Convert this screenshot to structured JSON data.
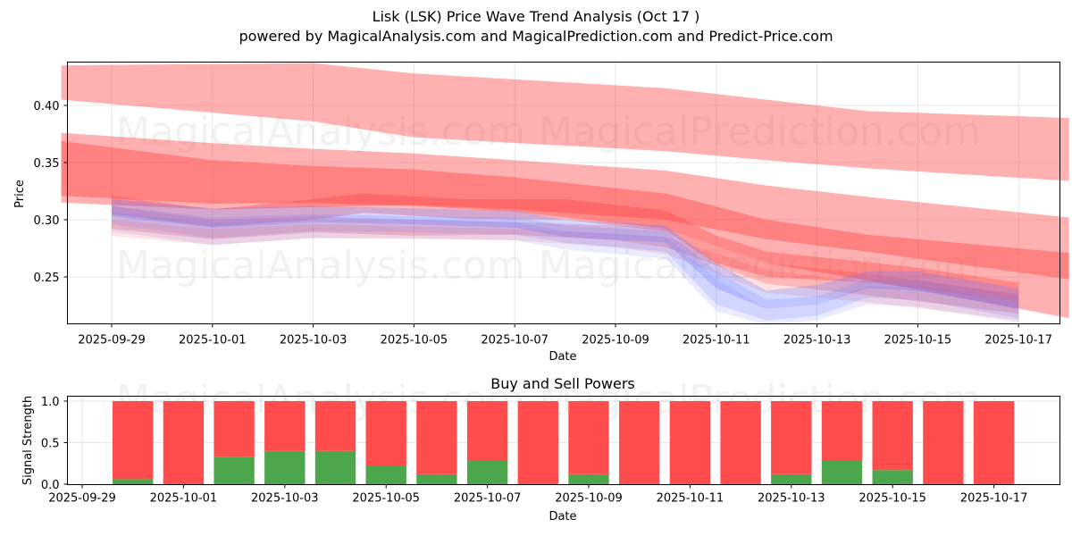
{
  "header": {
    "title": "Lisk (LSK) Price Wave Trend Analysis (Oct 17 )",
    "subtitle": "powered by MagicalAnalysis.com and MagicalPrediction.com and Predict-Price.com"
  },
  "watermarks": [
    "MagicalAnalysis.com",
    "MagicalPrediction.com"
  ],
  "colors": {
    "sell": "#ff4c4c",
    "buy": "#4ca64c",
    "band_red": "#ff3b3b",
    "band_blue": "#6f7bff",
    "grid": "#e0e0e0"
  },
  "chart_data": [
    {
      "type": "area",
      "title": "",
      "xlabel": "Date",
      "ylabel": "Price",
      "ylim": [
        0.209,
        0.439
      ],
      "xlim": [
        "2025-09-28",
        "2025-10-18"
      ],
      "grid": true,
      "x_ticks": [
        "2025-09-29",
        "2025-10-01",
        "2025-10-03",
        "2025-10-05",
        "2025-10-07",
        "2025-10-09",
        "2025-10-11",
        "2025-10-13",
        "2025-10-15",
        "2025-10-17"
      ],
      "y_ticks": [
        0.25,
        0.3,
        0.35,
        0.4
      ],
      "y_tick_labels": [
        "0.25",
        "0.30",
        "0.35",
        "0.40"
      ],
      "series": [
        {
          "name": "upper-band",
          "color": "red",
          "opacity": 0.4,
          "x": [
            "2025-09-28",
            "2025-10-03",
            "2025-10-05",
            "2025-10-10",
            "2025-10-12",
            "2025-10-14",
            "2025-10-18"
          ],
          "upper": [
            0.435,
            0.437,
            0.428,
            0.415,
            0.405,
            0.395,
            0.389
          ],
          "lower": [
            0.405,
            0.386,
            0.372,
            0.36,
            0.352,
            0.345,
            0.334
          ]
        },
        {
          "name": "middle-band-light",
          "color": "red",
          "opacity": 0.4,
          "x": [
            "2025-09-28",
            "2025-10-01",
            "2025-10-03",
            "2025-10-05",
            "2025-10-07",
            "2025-10-10",
            "2025-10-12",
            "2025-10-14",
            "2025-10-18"
          ],
          "upper": [
            0.376,
            0.367,
            0.362,
            0.358,
            0.352,
            0.343,
            0.33,
            0.32,
            0.302
          ],
          "lower": [
            0.315,
            0.309,
            0.311,
            0.313,
            0.309,
            0.3,
            0.283,
            0.272,
            0.248
          ]
        },
        {
          "name": "middle-band-dark",
          "color": "red",
          "opacity": 0.4,
          "x": [
            "2025-09-28",
            "2025-10-01",
            "2025-10-03",
            "2025-10-05",
            "2025-10-07",
            "2025-10-10",
            "2025-10-12",
            "2025-10-14",
            "2025-10-18"
          ],
          "upper": [
            0.369,
            0.352,
            0.347,
            0.344,
            0.337,
            0.323,
            0.3,
            0.287,
            0.271
          ],
          "lower": [
            0.321,
            0.314,
            0.315,
            0.312,
            0.307,
            0.292,
            0.262,
            0.247,
            0.214
          ]
        },
        {
          "name": "price-wave-red-1",
          "color": "red",
          "opacity": 0.35,
          "x": [
            "2025-09-29",
            "2025-10-01",
            "2025-10-03",
            "2025-10-04",
            "2025-10-06",
            "2025-10-08",
            "2025-10-10",
            "2025-10-11",
            "2025-10-12",
            "2025-10-14",
            "2025-10-15",
            "2025-10-17"
          ],
          "upper": [
            0.321,
            0.309,
            0.318,
            0.323,
            0.318,
            0.318,
            0.308,
            0.286,
            0.272,
            0.263,
            0.258,
            0.245
          ],
          "lower": [
            0.305,
            0.294,
            0.3,
            0.306,
            0.301,
            0.3,
            0.29,
            0.262,
            0.25,
            0.245,
            0.24,
            0.228
          ]
        },
        {
          "name": "price-wave-red-2",
          "color": "red",
          "opacity": 0.25,
          "x": [
            "2025-09-29",
            "2025-10-01",
            "2025-10-03",
            "2025-10-05",
            "2025-10-07",
            "2025-10-09",
            "2025-10-10",
            "2025-10-12",
            "2025-10-14",
            "2025-10-17"
          ],
          "upper": [
            0.312,
            0.3,
            0.303,
            0.3,
            0.298,
            0.295,
            0.292,
            0.262,
            0.253,
            0.235
          ],
          "lower": [
            0.292,
            0.283,
            0.289,
            0.286,
            0.287,
            0.282,
            0.276,
            0.244,
            0.234,
            0.218
          ]
        },
        {
          "name": "price-wave-red-3",
          "color": "red",
          "opacity": 0.15,
          "x": [
            "2025-09-29",
            "2025-10-01",
            "2025-10-03",
            "2025-10-05",
            "2025-10-07",
            "2025-10-09",
            "2025-10-10",
            "2025-10-12",
            "2025-10-14",
            "2025-10-17"
          ],
          "upper": [
            0.3,
            0.292,
            0.296,
            0.294,
            0.292,
            0.288,
            0.285,
            0.256,
            0.245,
            0.228
          ],
          "lower": [
            0.286,
            0.278,
            0.284,
            0.283,
            0.282,
            0.276,
            0.27,
            0.236,
            0.228,
            0.212
          ]
        },
        {
          "name": "price-wave-blue-1",
          "color": "blue",
          "opacity": 0.3,
          "x": [
            "2025-09-29",
            "2025-10-01",
            "2025-10-03",
            "2025-10-05",
            "2025-10-07",
            "2025-10-08",
            "2025-10-10",
            "2025-10-11",
            "2025-10-12",
            "2025-10-13",
            "2025-10-14",
            "2025-10-15",
            "2025-10-17"
          ],
          "upper": [
            0.318,
            0.31,
            0.312,
            0.31,
            0.308,
            0.3,
            0.295,
            0.262,
            0.238,
            0.243,
            0.255,
            0.255,
            0.24
          ],
          "lower": [
            0.303,
            0.293,
            0.298,
            0.296,
            0.293,
            0.285,
            0.28,
            0.24,
            0.222,
            0.226,
            0.24,
            0.238,
            0.222
          ]
        },
        {
          "name": "price-wave-blue-2",
          "color": "blue",
          "opacity": 0.2,
          "x": [
            "2025-09-29",
            "2025-10-01",
            "2025-10-03",
            "2025-10-05",
            "2025-10-07",
            "2025-10-08",
            "2025-10-10",
            "2025-10-11",
            "2025-10-12",
            "2025-10-13",
            "2025-10-14",
            "2025-10-15",
            "2025-10-17"
          ],
          "upper": [
            0.312,
            0.302,
            0.305,
            0.303,
            0.302,
            0.295,
            0.29,
            0.255,
            0.23,
            0.233,
            0.248,
            0.248,
            0.233
          ],
          "lower": [
            0.296,
            0.284,
            0.29,
            0.289,
            0.287,
            0.28,
            0.272,
            0.226,
            0.212,
            0.216,
            0.232,
            0.23,
            0.214
          ]
        },
        {
          "name": "price-wave-blue-3",
          "color": "blue",
          "opacity": 0.15,
          "x": [
            "2025-09-29",
            "2025-10-01",
            "2025-10-03",
            "2025-10-05",
            "2025-10-07",
            "2025-10-08",
            "2025-10-10",
            "2025-10-11",
            "2025-10-12",
            "2025-10-13",
            "2025-10-14",
            "2025-10-15",
            "2025-10-17"
          ],
          "upper": [
            0.307,
            0.298,
            0.3,
            0.3,
            0.298,
            0.29,
            0.285,
            0.248,
            0.222,
            0.226,
            0.242,
            0.242,
            0.228
          ],
          "lower": [
            0.29,
            0.278,
            0.284,
            0.284,
            0.282,
            0.274,
            0.266,
            0.22,
            0.208,
            0.212,
            0.226,
            0.224,
            0.21
          ]
        }
      ]
    },
    {
      "type": "bar",
      "title": "Buy and Sell Powers",
      "xlabel": "Date",
      "ylabel": "Signal Strength",
      "ylim": [
        0,
        1.05
      ],
      "xlim": [
        "2025-09-28.7",
        "2025-10-18.3"
      ],
      "grid": true,
      "x_ticks": [
        "2025-09-29",
        "2025-10-01",
        "2025-10-03",
        "2025-10-05",
        "2025-10-07",
        "2025-10-09",
        "2025-10-11",
        "2025-10-13",
        "2025-10-15",
        "2025-10-17"
      ],
      "y_ticks": [
        0.0,
        0.5,
        1.0
      ],
      "y_tick_labels": [
        "0.0",
        "0.5",
        "1.0"
      ],
      "categories": [
        "2025-09-30",
        "2025-10-01",
        "2025-10-02",
        "2025-10-03",
        "2025-10-04",
        "2025-10-05",
        "2025-10-06",
        "2025-10-07",
        "2025-10-08",
        "2025-10-09",
        "2025-10-10",
        "2025-10-11",
        "2025-10-12",
        "2025-10-13",
        "2025-10-14",
        "2025-10-15",
        "2025-10-16",
        "2025-10-17"
      ],
      "series": [
        {
          "name": "Buy",
          "color": "green",
          "values": [
            0.06,
            0.0,
            0.33,
            0.4,
            0.4,
            0.22,
            0.12,
            0.28,
            0.0,
            0.12,
            0.0,
            0.0,
            0.0,
            0.12,
            0.28,
            0.17,
            0.0,
            0.0
          ]
        },
        {
          "name": "Sell",
          "color": "red",
          "values": [
            0.94,
            1.0,
            0.67,
            0.6,
            0.6,
            0.78,
            0.88,
            0.72,
            1.0,
            0.88,
            1.0,
            1.0,
            1.0,
            0.88,
            0.72,
            0.83,
            1.0,
            1.0
          ]
        }
      ]
    }
  ]
}
